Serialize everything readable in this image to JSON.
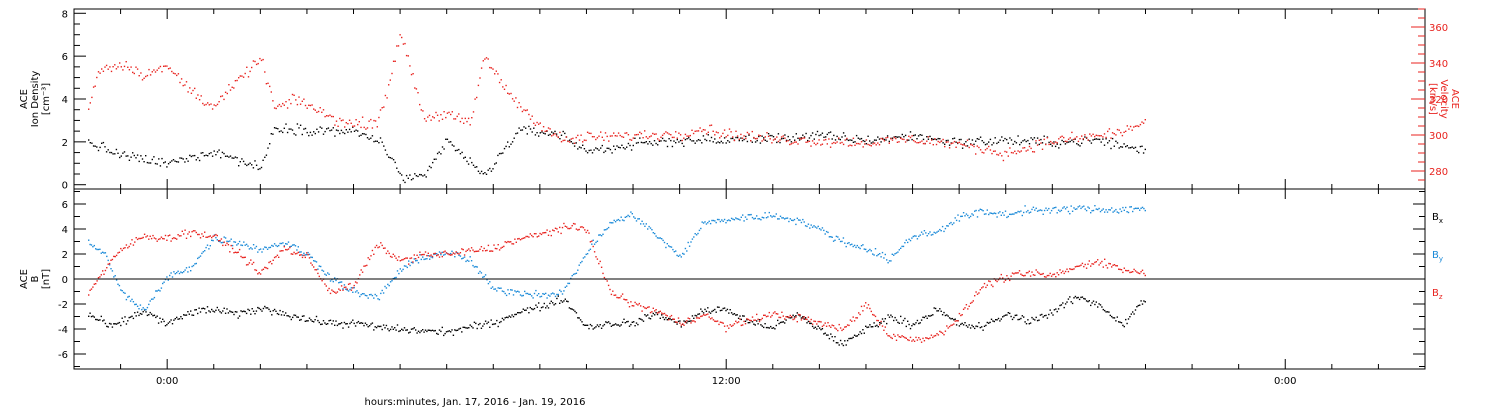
{
  "colors": {
    "black": "#000000",
    "red": "#e8231f",
    "blue": "#1b8ad8",
    "background": "#ffffff"
  },
  "x_axis": {
    "label": "hours:minutes, Jan. 17, 2016 - Jan. 19, 2016",
    "tick_labels": [
      {
        "hour": 24,
        "text": "0:00"
      },
      {
        "hour": 36,
        "text": "12:00"
      },
      {
        "hour": 48,
        "text": "0:00"
      }
    ],
    "range_hours": [
      22,
      51
    ],
    "data_end_hour": 45
  },
  "chart_data": [
    {
      "type": "scatter",
      "ylabel_left": [
        "ACE",
        "Ion Density",
        "[cm⁻³]"
      ],
      "ylabel_right": [
        "ACE",
        "Velocity",
        "[km/s]"
      ],
      "left_ylim": [
        -0.2,
        8.2
      ],
      "left_ticks": [
        0,
        2,
        4,
        6,
        8
      ],
      "right_ylim": [
        270,
        370
      ],
      "right_ticks": [
        280,
        300,
        320,
        340,
        360
      ],
      "series": [
        {
          "key": "density",
          "color": "black",
          "axis": "left",
          "x": [
            22.3,
            23.0,
            24.0,
            25.0,
            26.0,
            26.3,
            27.0,
            28.0,
            28.6,
            29.0,
            29.5,
            30.0,
            30.8,
            31.5,
            32.0,
            32.4,
            33.0,
            34.0,
            35.0,
            36.0,
            37.0,
            38.0,
            39.0,
            40.0,
            41.0,
            42.0,
            43.0,
            44.0,
            45.0
          ],
          "y": [
            2.0,
            1.4,
            1.0,
            1.6,
            0.8,
            2.7,
            2.6,
            2.5,
            2.0,
            0.4,
            0.3,
            2.1,
            0.4,
            2.5,
            2.5,
            2.4,
            1.6,
            1.9,
            2.1,
            2.1,
            2.2,
            2.3,
            2.1,
            2.3,
            2.0,
            2.1,
            2.0,
            2.1,
            1.6
          ]
        },
        {
          "key": "velocity",
          "color": "red",
          "axis": "right",
          "x": [
            22.3,
            22.5,
            23.0,
            23.5,
            24.0,
            24.5,
            25.0,
            25.5,
            26.0,
            26.3,
            26.8,
            27.5,
            28.0,
            28.5,
            28.8,
            29.0,
            29.5,
            30.0,
            30.5,
            30.8,
            31.0,
            31.5,
            32.0,
            32.5,
            33.0,
            34.0,
            35.0,
            35.5,
            36.0,
            37.0,
            38.0,
            39.0,
            40.0,
            41.0,
            42.0,
            43.0,
            44.0,
            44.5,
            45.0
          ],
          "y": [
            315,
            336,
            340,
            334,
            338,
            325,
            316,
            330,
            343,
            315,
            320,
            310,
            306,
            308,
            332,
            358,
            310,
            312,
            306,
            345,
            335,
            318,
            306,
            297,
            299,
            300,
            301,
            304,
            301,
            298,
            297,
            296,
            298,
            295,
            290,
            297,
            300,
            302,
            308
          ]
        }
      ]
    },
    {
      "type": "scatter",
      "ylabel_left": [
        "ACE",
        "B",
        "[nT]"
      ],
      "left_ylim": [
        -7.2,
        7.2
      ],
      "left_ticks": [
        -6,
        -4,
        -2,
        0,
        2,
        4,
        6
      ],
      "zero_line": true,
      "legend": [
        {
          "text": "B",
          "sub": "x",
          "color": "black"
        },
        {
          "text": "B",
          "sub": "y",
          "color": "blue"
        },
        {
          "text": "B",
          "sub": "z",
          "color": "red"
        }
      ],
      "series": [
        {
          "key": "bx",
          "color": "black",
          "x": [
            22.3,
            22.8,
            23.5,
            24.0,
            24.5,
            25.0,
            25.5,
            26.0,
            26.3,
            27.0,
            27.5,
            28.0,
            28.5,
            29.0,
            29.5,
            30.0,
            30.5,
            31.0,
            31.5,
            32.0,
            32.5,
            33.0,
            33.5,
            34.0,
            34.5,
            35.0,
            35.5,
            36.0,
            36.5,
            37.0,
            37.5,
            38.0,
            38.5,
            39.0,
            39.5,
            40.0,
            40.5,
            41.0,
            41.5,
            42.0,
            42.5,
            43.0,
            43.5,
            44.0,
            44.5,
            45.0
          ],
          "y": [
            -2.8,
            -3.8,
            -2.5,
            -3.6,
            -2.6,
            -2.4,
            -2.8,
            -2.3,
            -2.5,
            -3.2,
            -3.5,
            -3.5,
            -3.8,
            -4.0,
            -4.1,
            -4.2,
            -3.8,
            -3.5,
            -2.6,
            -2.2,
            -1.5,
            -3.8,
            -3.5,
            -3.5,
            -2.7,
            -3.6,
            -2.5,
            -2.4,
            -3.4,
            -3.8,
            -2.8,
            -4.0,
            -5.2,
            -3.9,
            -3.0,
            -3.6,
            -2.4,
            -3.6,
            -3.8,
            -2.8,
            -3.3,
            -2.6,
            -1.4,
            -2.0,
            -3.6,
            -1.5
          ]
        },
        {
          "key": "by",
          "color": "blue",
          "x": [
            22.3,
            22.7,
            23.0,
            23.5,
            24.0,
            24.5,
            25.0,
            25.5,
            26.0,
            26.5,
            27.0,
            27.5,
            28.0,
            28.5,
            29.0,
            29.5,
            30.0,
            30.5,
            31.0,
            31.5,
            32.0,
            32.5,
            33.0,
            33.5,
            34.0,
            34.5,
            35.0,
            35.5,
            36.0,
            36.5,
            37.0,
            37.5,
            38.0,
            38.5,
            39.0,
            39.5,
            40.0,
            40.5,
            41.0,
            41.5,
            42.0,
            42.5,
            43.0,
            43.5,
            44.0,
            44.5,
            45.0
          ],
          "y": [
            3.0,
            1.8,
            -1.0,
            -2.5,
            0.2,
            1.0,
            3.3,
            3.0,
            2.4,
            3.0,
            2.0,
            0.2,
            -1.0,
            -1.5,
            0.8,
            1.8,
            2.2,
            1.5,
            -0.8,
            -1.0,
            -1.2,
            -1.0,
            2.2,
            4.5,
            5.2,
            3.5,
            1.8,
            4.5,
            4.8,
            5.0,
            5.1,
            4.8,
            4.0,
            3.0,
            2.5,
            1.6,
            3.5,
            3.8,
            5.0,
            5.4,
            5.2,
            5.6,
            5.5,
            5.7,
            5.6,
            5.6,
            5.7
          ]
        },
        {
          "key": "bz",
          "color": "red",
          "x": [
            22.3,
            22.7,
            23.0,
            23.5,
            24.0,
            24.5,
            25.0,
            25.5,
            26.0,
            26.5,
            27.0,
            27.5,
            28.0,
            28.5,
            29.0,
            29.5,
            30.0,
            30.5,
            31.0,
            31.5,
            32.0,
            32.5,
            33.0,
            33.5,
            34.0,
            34.5,
            35.0,
            35.5,
            36.0,
            36.5,
            37.0,
            37.5,
            38.0,
            38.5,
            39.0,
            39.5,
            40.0,
            40.5,
            41.0,
            41.5,
            42.0,
            42.5,
            43.0,
            43.5,
            44.0,
            44.5,
            45.0
          ],
          "y": [
            -1.0,
            1.0,
            2.4,
            3.5,
            3.3,
            3.8,
            3.4,
            2.2,
            0.5,
            2.5,
            1.8,
            -1.0,
            -0.5,
            2.8,
            1.5,
            2.0,
            2.0,
            2.3,
            2.5,
            3.2,
            3.6,
            4.2,
            4.0,
            -1.0,
            -2.0,
            -2.5,
            -3.5,
            -2.8,
            -3.8,
            -3.2,
            -2.8,
            -3.0,
            -3.5,
            -4.0,
            -2.0,
            -4.5,
            -4.8,
            -4.5,
            -3.0,
            -0.5,
            0.2,
            0.5,
            0.3,
            1.0,
            1.5,
            0.8,
            0.5
          ]
        }
      ]
    }
  ]
}
